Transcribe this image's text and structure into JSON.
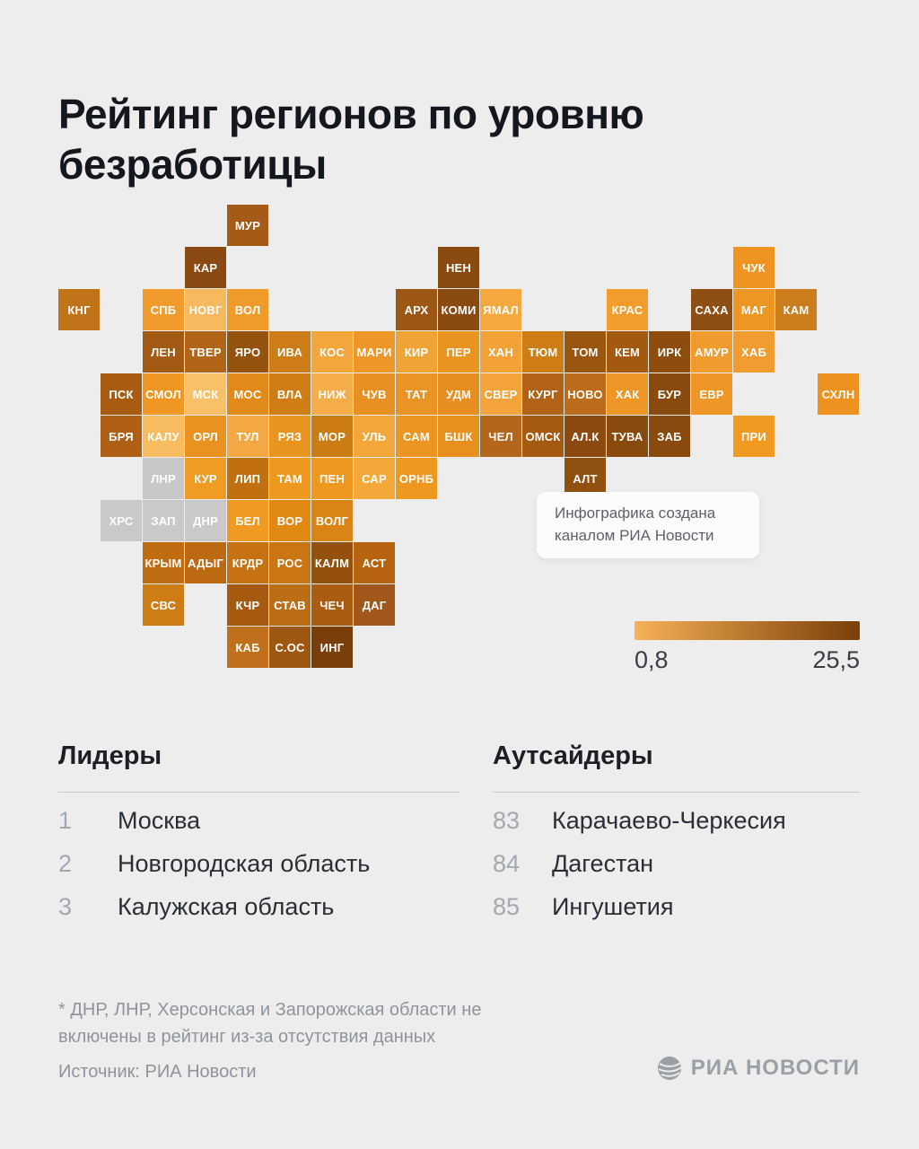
{
  "title": "Рейтинг регионов по уровню безработицы",
  "note_box": {
    "text": "Инфографика создана каналом РИА Новости"
  },
  "legend": {
    "min_label": "0,8",
    "max_label": "25,5",
    "gradient_start": "#f7b156",
    "gradient_end": "#7a3e07"
  },
  "leaders": {
    "heading": "Лидеры",
    "items": [
      {
        "rank": "1",
        "name": "Москва"
      },
      {
        "rank": "2",
        "name": "Новгородская область"
      },
      {
        "rank": "3",
        "name": "Калужская область"
      }
    ]
  },
  "outsiders": {
    "heading": "Аутсайдеры",
    "items": [
      {
        "rank": "83",
        "name": "Карачаево-Черкесия"
      },
      {
        "rank": "84",
        "name": "Дагестан"
      },
      {
        "rank": "85",
        "name": "Ингушетия"
      }
    ]
  },
  "footnote": "* ДНР, ЛНР, Херсонская и Запорожская области не включены в рейтинг из-за отсутствия данных",
  "source": "Источник: РИА Новости",
  "logo": {
    "text": "РИА НОВОСТИ"
  },
  "chart_data": {
    "type": "heatmap",
    "title": "Рейтинг регионов по уровню безработицы",
    "legend": {
      "min": 0.8,
      "max": 25.5,
      "min_label": "0,8",
      "max_label": "25,5"
    },
    "excluded_regions_color": "#c9c9c9",
    "tiles": [
      {
        "label": "МУР",
        "col": 4,
        "row": 0,
        "color": "#a55a17"
      },
      {
        "label": "КАР",
        "col": 3,
        "row": 1,
        "color": "#8a4a12"
      },
      {
        "label": "НЕН",
        "col": 9,
        "row": 1,
        "color": "#8a4a10"
      },
      {
        "label": "ЧУК",
        "col": 16,
        "row": 1,
        "color": "#ef9420"
      },
      {
        "label": "КНГ",
        "col": 0,
        "row": 2,
        "color": "#c1731a"
      },
      {
        "label": "СПБ",
        "col": 2,
        "row": 2,
        "color": "#f09b2b"
      },
      {
        "label": "НОВГ",
        "col": 3,
        "row": 2,
        "color": "#f7b95e"
      },
      {
        "label": "ВОЛ",
        "col": 4,
        "row": 2,
        "color": "#ef9b2a"
      },
      {
        "label": "АРХ",
        "col": 8,
        "row": 2,
        "color": "#9c5714"
      },
      {
        "label": "КОМИ",
        "col": 9,
        "row": 2,
        "color": "#8a4a10"
      },
      {
        "label": "ЯМАЛ",
        "col": 10,
        "row": 2,
        "color": "#f5a83e"
      },
      {
        "label": "КРАС",
        "col": 13,
        "row": 2,
        "color": "#f29d2b"
      },
      {
        "label": "САХА",
        "col": 15,
        "row": 2,
        "color": "#8f4f14"
      },
      {
        "label": "МАГ",
        "col": 16,
        "row": 2,
        "color": "#ed9623"
      },
      {
        "label": "КАМ",
        "col": 17,
        "row": 2,
        "color": "#cb7c1c"
      },
      {
        "label": "ЛЕН",
        "col": 2,
        "row": 3,
        "color": "#a25a14"
      },
      {
        "label": "ТВЕР",
        "col": 3,
        "row": 3,
        "color": "#b06518"
      },
      {
        "label": "ЯРО",
        "col": 4,
        "row": 3,
        "color": "#94520f"
      },
      {
        "label": "ИВА",
        "col": 5,
        "row": 3,
        "color": "#cc7d17"
      },
      {
        "label": "КОС",
        "col": 6,
        "row": 3,
        "color": "#f3a63c"
      },
      {
        "label": "МАРИ",
        "col": 7,
        "row": 3,
        "color": "#ee9728"
      },
      {
        "label": "КИР",
        "col": 8,
        "row": 3,
        "color": "#f0a435"
      },
      {
        "label": "ПЕР",
        "col": 9,
        "row": 3,
        "color": "#e99320"
      },
      {
        "label": "ХАН",
        "col": 10,
        "row": 3,
        "color": "#f2a237"
      },
      {
        "label": "ТЮМ",
        "col": 11,
        "row": 3,
        "color": "#cd7c16"
      },
      {
        "label": "ТОМ",
        "col": 12,
        "row": 3,
        "color": "#9a550e"
      },
      {
        "label": "КЕМ",
        "col": 13,
        "row": 3,
        "color": "#a35a10"
      },
      {
        "label": "ИРК",
        "col": 14,
        "row": 3,
        "color": "#8f4d0d"
      },
      {
        "label": "АМУР",
        "col": 15,
        "row": 3,
        "color": "#ef9b2d"
      },
      {
        "label": "ХАБ",
        "col": 16,
        "row": 3,
        "color": "#f09c2e"
      },
      {
        "label": "ПСК",
        "col": 1,
        "row": 4,
        "color": "#a85c12"
      },
      {
        "label": "СМОЛ",
        "col": 2,
        "row": 4,
        "color": "#ef9722"
      },
      {
        "label": "МСК",
        "col": 3,
        "row": 4,
        "color": "#f8c069"
      },
      {
        "label": "МОС",
        "col": 4,
        "row": 4,
        "color": "#e18a1a"
      },
      {
        "label": "ВЛА",
        "col": 5,
        "row": 4,
        "color": "#cf7d15"
      },
      {
        "label": "НИЖ",
        "col": 6,
        "row": 4,
        "color": "#f5ad49"
      },
      {
        "label": "ЧУВ",
        "col": 7,
        "row": 4,
        "color": "#e89021"
      },
      {
        "label": "ТАТ",
        "col": 8,
        "row": 4,
        "color": "#ea9426"
      },
      {
        "label": "УДМ",
        "col": 9,
        "row": 4,
        "color": "#e68e1f"
      },
      {
        "label": "СВЕР",
        "col": 10,
        "row": 4,
        "color": "#f2a33a"
      },
      {
        "label": "КУРГ",
        "col": 11,
        "row": 4,
        "color": "#b26318"
      },
      {
        "label": "НОВО",
        "col": 12,
        "row": 4,
        "color": "#bc6c1a"
      },
      {
        "label": "ХАК",
        "col": 13,
        "row": 4,
        "color": "#ed9525"
      },
      {
        "label": "БУР",
        "col": 14,
        "row": 4,
        "color": "#8a4a0e"
      },
      {
        "label": "ЕВР",
        "col": 15,
        "row": 4,
        "color": "#ee9726"
      },
      {
        "label": "СХЛН",
        "col": 18,
        "row": 4,
        "color": "#ed9220"
      },
      {
        "label": "БРЯ",
        "col": 1,
        "row": 5,
        "color": "#b06014"
      },
      {
        "label": "КАЛУ",
        "col": 2,
        "row": 5,
        "color": "#f7bb60"
      },
      {
        "label": "ОРЛ",
        "col": 3,
        "row": 5,
        "color": "#e9921f"
      },
      {
        "label": "ТУЛ",
        "col": 4,
        "row": 5,
        "color": "#f4a843"
      },
      {
        "label": "РЯЗ",
        "col": 5,
        "row": 5,
        "color": "#ea9420"
      },
      {
        "label": "МОР",
        "col": 6,
        "row": 5,
        "color": "#cc7c14"
      },
      {
        "label": "УЛЬ",
        "col": 7,
        "row": 5,
        "color": "#f3a63a"
      },
      {
        "label": "САМ",
        "col": 8,
        "row": 5,
        "color": "#ec9523"
      },
      {
        "label": "БШК",
        "col": 9,
        "row": 5,
        "color": "#e88f1e"
      },
      {
        "label": "ЧЕЛ",
        "col": 10,
        "row": 5,
        "color": "#b4661c"
      },
      {
        "label": "ОМСК",
        "col": 11,
        "row": 5,
        "color": "#a55a12"
      },
      {
        "label": "АЛ.К",
        "col": 12,
        "row": 5,
        "color": "#8d4a10"
      },
      {
        "label": "ТУВА",
        "col": 13,
        "row": 5,
        "color": "#8a4a0e"
      },
      {
        "label": "ЗАБ",
        "col": 14,
        "row": 5,
        "color": "#8a4a0e"
      },
      {
        "label": "ПРИ",
        "col": 16,
        "row": 5,
        "color": "#f09a22"
      },
      {
        "label": "ЛНР",
        "col": 2,
        "row": 6,
        "color": "#c8c8c8"
      },
      {
        "label": "КУР",
        "col": 3,
        "row": 6,
        "color": "#f09b24"
      },
      {
        "label": "ЛИП",
        "col": 4,
        "row": 6,
        "color": "#c0700f"
      },
      {
        "label": "ТАМ",
        "col": 5,
        "row": 6,
        "color": "#ee9820"
      },
      {
        "label": "ПЕН",
        "col": 6,
        "row": 6,
        "color": "#ee9820"
      },
      {
        "label": "САР",
        "col": 7,
        "row": 6,
        "color": "#f4a837"
      },
      {
        "label": "ОРНБ",
        "col": 8,
        "row": 6,
        "color": "#ee9820"
      },
      {
        "label": "АЛТ",
        "col": 12,
        "row": 6,
        "color": "#90500f"
      },
      {
        "label": "ХРС",
        "col": 1,
        "row": 7,
        "color": "#c9c9c9"
      },
      {
        "label": "ЗАП",
        "col": 2,
        "row": 7,
        "color": "#c9c9c9"
      },
      {
        "label": "ДНР",
        "col": 3,
        "row": 7,
        "color": "#c9c9c9"
      },
      {
        "label": "БЕЛ",
        "col": 4,
        "row": 7,
        "color": "#f09a24"
      },
      {
        "label": "ВОР",
        "col": 5,
        "row": 7,
        "color": "#e18813"
      },
      {
        "label": "ВОЛГ",
        "col": 6,
        "row": 7,
        "color": "#d98414"
      },
      {
        "label": "КРЫМ",
        "col": 2,
        "row": 8,
        "color": "#c06c10"
      },
      {
        "label": "АДЫГ",
        "col": 3,
        "row": 8,
        "color": "#bc6a12"
      },
      {
        "label": "КРДР",
        "col": 4,
        "row": 8,
        "color": "#c57114"
      },
      {
        "label": "РОС",
        "col": 5,
        "row": 8,
        "color": "#ca7513"
      },
      {
        "label": "КАЛМ",
        "col": 6,
        "row": 8,
        "color": "#96500e"
      },
      {
        "label": "АСТ",
        "col": 7,
        "row": 8,
        "color": "#b76410"
      },
      {
        "label": "СВС",
        "col": 2,
        "row": 9,
        "color": "#cd7c16"
      },
      {
        "label": "КЧР",
        "col": 4,
        "row": 9,
        "color": "#a55a10"
      },
      {
        "label": "СТАВ",
        "col": 5,
        "row": 9,
        "color": "#bc6e16"
      },
      {
        "label": "ЧЕЧ",
        "col": 6,
        "row": 9,
        "color": "#aa5c10"
      },
      {
        "label": "ДАГ",
        "col": 7,
        "row": 9,
        "color": "#a2571a"
      },
      {
        "label": "КАБ",
        "col": 4,
        "row": 10,
        "color": "#c0701a"
      },
      {
        "label": "С.ОС",
        "col": 5,
        "row": 10,
        "color": "#9e5812"
      },
      {
        "label": "ИНГ",
        "col": 6,
        "row": 10,
        "color": "#7a3e0a"
      }
    ]
  }
}
